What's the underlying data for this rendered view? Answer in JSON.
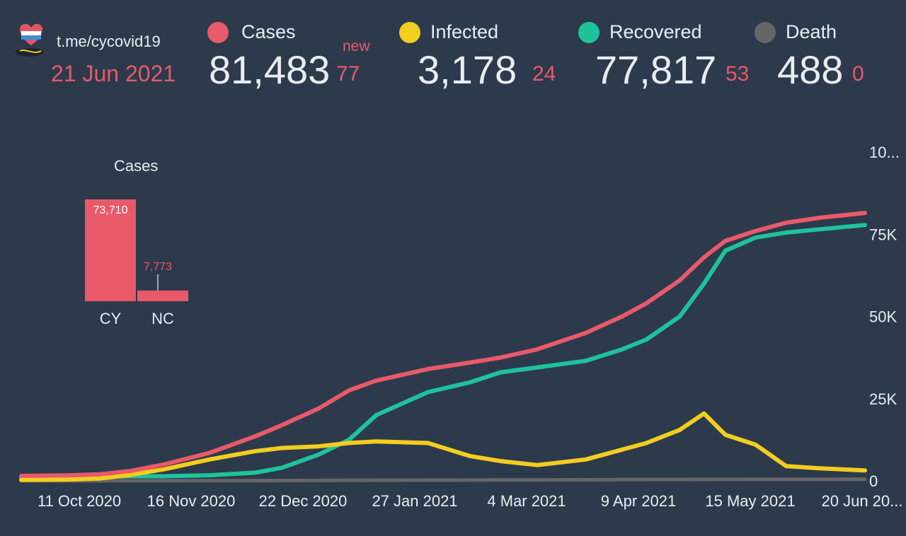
{
  "header": {
    "channel": "t.me/cycovid19",
    "date": "21 Jun 2021"
  },
  "stats": {
    "cases": {
      "label": "Cases",
      "value": "81,483",
      "new_label": "new",
      "new_value": "77",
      "color": "#e8596a"
    },
    "infected": {
      "label": "Infected",
      "value": "3,178",
      "new_value": "24",
      "color": "#f3cd1f"
    },
    "recovered": {
      "label": "Recovered",
      "value": "77,817",
      "new_value": "53",
      "color": "#1fc29b"
    },
    "death": {
      "label": "Death",
      "value": "488",
      "new_value": "0",
      "color": "#666666"
    }
  },
  "chart_data": [
    {
      "type": "line",
      "x_tick_labels": [
        "11 Oct 2020",
        "16 Nov 2020",
        "22 Dec 2020",
        "27 Jan 2021",
        "4 Mar 2021",
        "9 Apr 2021",
        "15 May 2021",
        "20 Jun 20..."
      ],
      "y_tick_labels": [
        "0",
        "25K",
        "50K",
        "75K",
        "10..."
      ],
      "ylim": [
        0,
        100000
      ],
      "legend": "top",
      "x": [
        "2020-09-15",
        "2020-10-01",
        "2020-10-11",
        "2020-10-21",
        "2020-11-01",
        "2020-11-16",
        "2020-12-01",
        "2020-12-10",
        "2020-12-22",
        "2021-01-01",
        "2021-01-10",
        "2021-01-27",
        "2021-02-10",
        "2021-02-20",
        "2021-03-04",
        "2021-03-20",
        "2021-04-01",
        "2021-04-09",
        "2021-04-20",
        "2021-04-28",
        "2021-05-05",
        "2021-05-15",
        "2021-05-25",
        "2021-06-05",
        "2021-06-20"
      ],
      "series": [
        {
          "name": "Cases",
          "color": "#e8596a",
          "values": [
            1500,
            1700,
            2000,
            3000,
            5000,
            8500,
            13500,
            17000,
            22000,
            27500,
            30500,
            34000,
            36000,
            37500,
            40000,
            45000,
            50000,
            54000,
            61000,
            68000,
            73000,
            76000,
            78500,
            80000,
            81483
          ]
        },
        {
          "name": "Infected",
          "color": "#f3cd1f",
          "values": [
            300,
            400,
            700,
            1800,
            3500,
            6500,
            9000,
            10000,
            10500,
            11500,
            12000,
            11500,
            7500,
            6000,
            4800,
            6500,
            9500,
            11500,
            15500,
            20500,
            14000,
            11000,
            4500,
            3800,
            3178
          ]
        },
        {
          "name": "Recovered",
          "color": "#1fc29b",
          "values": [
            1200,
            1200,
            1200,
            1400,
            1400,
            1700,
            2500,
            4000,
            8000,
            12500,
            20000,
            27000,
            30000,
            33000,
            34500,
            36500,
            40000,
            43000,
            50000,
            60000,
            70000,
            74000,
            75500,
            76500,
            77817
          ]
        },
        {
          "name": "Death",
          "color": "#666666",
          "values": [
            20,
            20,
            22,
            25,
            30,
            45,
            70,
            100,
            130,
            160,
            190,
            220,
            240,
            260,
            280,
            320,
            360,
            390,
            410,
            440,
            460,
            470,
            480,
            485,
            488
          ]
        }
      ]
    },
    {
      "type": "bar",
      "title": "Cases",
      "categories": [
        "CY",
        "NC"
      ],
      "values": [
        73710,
        7773
      ],
      "value_labels": [
        "73,710",
        "7,773"
      ],
      "color": "#e8596a"
    }
  ]
}
